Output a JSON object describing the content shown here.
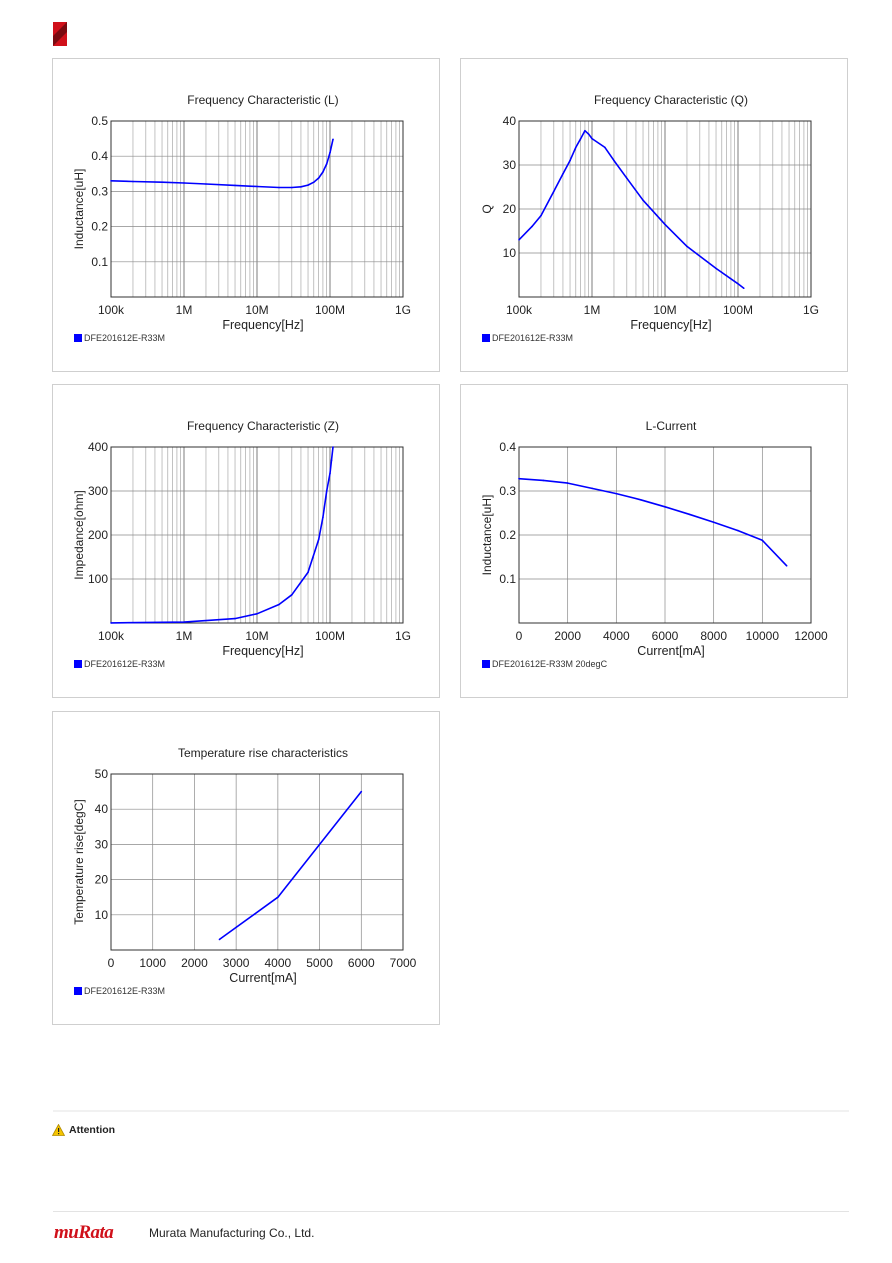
{
  "page": {
    "attention_label": "Attention",
    "logo_text": "muRata",
    "company_name": "Murata Manufacturing Co., Ltd."
  },
  "chart_data": [
    {
      "type": "line",
      "title": "Frequency Characteristic (L)",
      "xlabel": "Frequency[Hz]",
      "ylabel": "Inductance[uH]",
      "x_scale": "log",
      "xlim": [
        100000,
        1000000000
      ],
      "ylim": [
        0,
        0.5
      ],
      "x_ticks": [
        "100k",
        "1M",
        "10M",
        "100M",
        "1G"
      ],
      "y_ticks": [
        "0.1",
        "0.2",
        "0.3",
        "0.4",
        "0.5"
      ],
      "grid": true,
      "series": [
        {
          "name": "DFE201612E-R33M",
          "color": "#0000ff",
          "x": [
            100000,
            200000,
            500000,
            1000000,
            2000000,
            5000000,
            10000000,
            20000000,
            30000000,
            40000000,
            50000000,
            60000000,
            70000000,
            80000000,
            90000000,
            100000000,
            110000000
          ],
          "y": [
            0.33,
            0.328,
            0.326,
            0.324,
            0.321,
            0.317,
            0.314,
            0.311,
            0.311,
            0.313,
            0.318,
            0.326,
            0.338,
            0.355,
            0.378,
            0.41,
            0.448
          ]
        }
      ]
    },
    {
      "type": "line",
      "title": "Frequency Characteristic (Q)",
      "xlabel": "Frequency[Hz]",
      "ylabel": "Q",
      "x_scale": "log",
      "xlim": [
        100000,
        1000000000
      ],
      "ylim": [
        0,
        40
      ],
      "x_ticks": [
        "100k",
        "1M",
        "10M",
        "100M",
        "1G"
      ],
      "y_ticks": [
        "10",
        "20",
        "30",
        "40"
      ],
      "grid": true,
      "series": [
        {
          "name": "DFE201612E-R33M",
          "color": "#0000ff",
          "x": [
            100000,
            150000,
            200000,
            300000,
            400000,
            500000,
            600000,
            700000,
            800000,
            900000,
            1000000,
            1500000,
            2000000,
            3000000,
            5000000,
            10000000,
            20000000,
            50000000,
            100000000,
            120000000
          ],
          "y": [
            13,
            16,
            18.5,
            24,
            28,
            31,
            34,
            36,
            37.8,
            37,
            36,
            34,
            31,
            27,
            22,
            16.5,
            11.5,
            6.5,
            3,
            2
          ]
        }
      ]
    },
    {
      "type": "line",
      "title": "Frequency Characteristic (Z)",
      "xlabel": "Frequency[Hz]",
      "ylabel": "Impedance[ohm]",
      "x_scale": "log",
      "xlim": [
        100000,
        1000000000
      ],
      "ylim": [
        0,
        400
      ],
      "x_ticks": [
        "100k",
        "1M",
        "10M",
        "100M",
        "1G"
      ],
      "y_ticks": [
        "100",
        "200",
        "300",
        "400"
      ],
      "grid": true,
      "series": [
        {
          "name": "DFE201612E-R33M",
          "color": "#0000ff",
          "x": [
            100000,
            1000000,
            5000000,
            10000000,
            20000000,
            30000000,
            50000000,
            70000000,
            80000000,
            90000000,
            100000000,
            105000000,
            110000000
          ],
          "y": [
            0.2,
            2,
            10,
            21,
            42,
            64,
            115,
            190,
            240,
            300,
            340,
            370,
            400
          ]
        }
      ]
    },
    {
      "type": "line",
      "title": "L-Current",
      "xlabel": "Current[mA]",
      "ylabel": "Inductance[uH]",
      "xlim": [
        0,
        12000
      ],
      "ylim": [
        0,
        0.4
      ],
      "x_ticks": [
        "0",
        "2000",
        "4000",
        "6000",
        "8000",
        "10000",
        "12000"
      ],
      "y_ticks": [
        "0.1",
        "0.2",
        "0.3",
        "0.4"
      ],
      "grid": true,
      "series": [
        {
          "name": "DFE201612E-R33M 20degC",
          "color": "#0000ff",
          "x": [
            0,
            1000,
            2000,
            3000,
            4000,
            5000,
            6000,
            7000,
            8000,
            9000,
            10000,
            11000
          ],
          "y": [
            0.328,
            0.324,
            0.318,
            0.306,
            0.294,
            0.28,
            0.264,
            0.247,
            0.229,
            0.21,
            0.188,
            0.13
          ]
        }
      ]
    },
    {
      "type": "line",
      "title": "Temperature rise characteristics",
      "xlabel": "Current[mA]",
      "ylabel": "Temperature rise[degC]",
      "xlim": [
        0,
        7000
      ],
      "ylim": [
        0,
        50
      ],
      "x_ticks": [
        "0",
        "1000",
        "2000",
        "3000",
        "4000",
        "5000",
        "6000",
        "7000"
      ],
      "y_ticks": [
        "10",
        "20",
        "30",
        "40",
        "50"
      ],
      "grid": true,
      "series": [
        {
          "name": "DFE201612E-R33M",
          "color": "#0000ff",
          "x": [
            2600,
            4000,
            6000
          ],
          "y": [
            3,
            15,
            45
          ]
        }
      ]
    }
  ]
}
